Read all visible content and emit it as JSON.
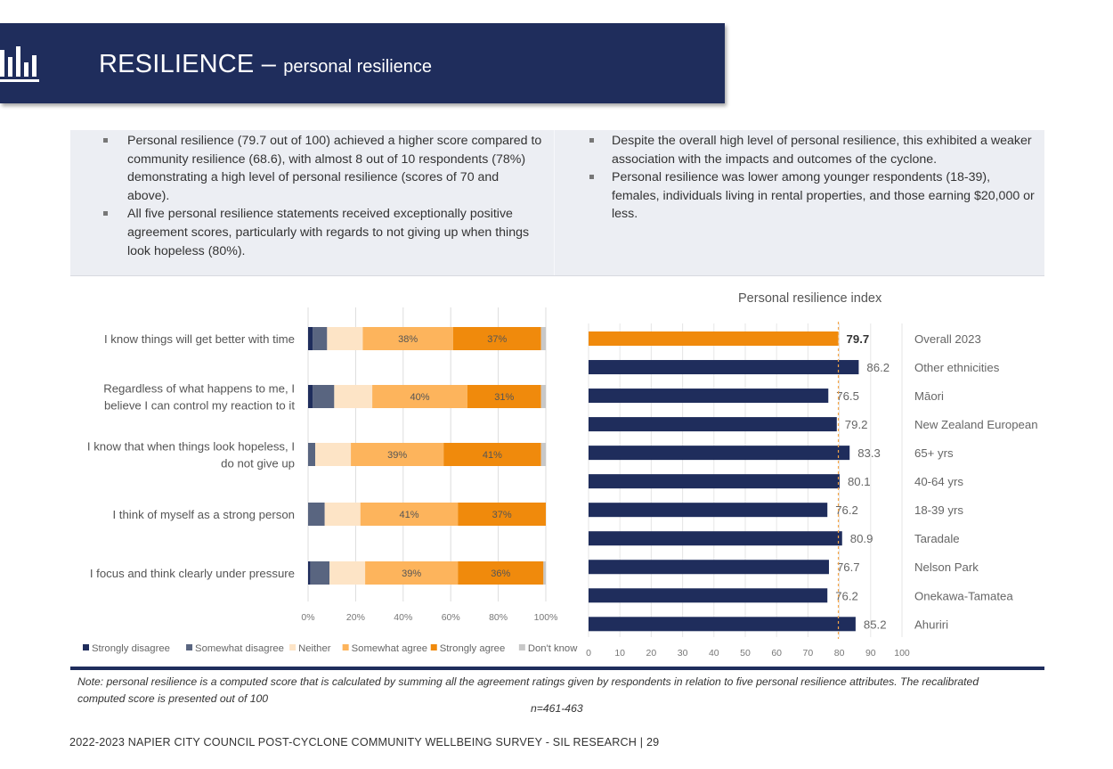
{
  "header": {
    "title": "RESILIENCE",
    "dash": " – ",
    "subtitle": "personal resilience",
    "icon": "bar-chart-icon",
    "bg_color": "#1f2d5c"
  },
  "summary": {
    "left_bullets": [
      "Personal resilience (79.7 out of 100) achieved a higher score compared to community resilience (68.6), with almost 8 out of 10 respondents (78%) demonstrating a high level of personal resilience (scores of 70 and above).",
      "All five personal resilience statements received exceptionally positive agreement scores, particularly with regards to not giving up when things look hopeless (80%)."
    ],
    "right_bullets": [
      "Despite the overall high level of personal resilience, this exhibited a weaker association with the impacts and outcomes of the cyclone.",
      "Personal resilience was lower among younger respondents (18-39), females, individuals living in rental properties, and those earning $20,000 or less."
    ]
  },
  "chart_data": [
    {
      "type": "bar",
      "orientation": "horizontal",
      "stacked": true,
      "title": "",
      "categories": [
        "I know things will get better with time",
        "Regardless of what happens to me, I believe I can control my reaction to it",
        "I know that when things look hopeless, I do not give up",
        "I think of myself as a strong person",
        "I focus and think clearly under pressure"
      ],
      "category_lines": [
        [
          "I know things will get better with time"
        ],
        [
          "Regardless of what happens to me, I",
          "believe I can control my reaction to it"
        ],
        [
          "I know that when things look hopeless, I",
          "do not give up"
        ],
        [
          "I think of myself as a strong person"
        ],
        [
          "I focus and think clearly under pressure"
        ]
      ],
      "series": [
        {
          "name": "Strongly disagree",
          "color": "#1f2d5c",
          "values": [
            2,
            2,
            0,
            0,
            1
          ]
        },
        {
          "name": "Somewhat disagree",
          "color": "#596580",
          "values": [
            6,
            9,
            3,
            7,
            8
          ]
        },
        {
          "name": "Neither",
          "color": "#fde4c6",
          "values": [
            15,
            16,
            15,
            15,
            15
          ]
        },
        {
          "name": "Somewhat agree",
          "color": "#fdb45c",
          "values": [
            38,
            40,
            39,
            41,
            39
          ]
        },
        {
          "name": "Strongly agree",
          "color": "#f08a0c",
          "values": [
            37,
            31,
            41,
            37,
            36
          ]
        },
        {
          "name": "Don't know",
          "color": "#c8c8c8",
          "values": [
            2,
            2,
            2,
            0,
            1
          ]
        }
      ],
      "data_labels": [
        [
          "38%",
          "37%"
        ],
        [
          "40%",
          "31%"
        ],
        [
          "39%",
          "41%"
        ],
        [
          "41%",
          "37%"
        ],
        [
          "39%",
          "36%"
        ]
      ],
      "labelled_series": [
        "Somewhat agree",
        "Strongly agree"
      ],
      "x_ticks": [
        "0%",
        "20%",
        "40%",
        "60%",
        "80%",
        "100%"
      ],
      "xlim": [
        0,
        100
      ],
      "grid": true,
      "legend_position": "bottom"
    },
    {
      "type": "bar",
      "orientation": "horizontal",
      "title": "Personal resilience index",
      "categories": [
        "Overall 2023",
        "Other ethnicities",
        "Māori",
        "New Zealand European",
        "65+ yrs",
        "40-64 yrs",
        "18-39 yrs",
        "Taradale",
        "Nelson Park",
        "Onekawa-Tamatea",
        "Ahuriri"
      ],
      "values": [
        79.7,
        86.2,
        76.5,
        79.2,
        83.3,
        80.1,
        76.2,
        80.9,
        76.7,
        76.2,
        85.2
      ],
      "value_labels": [
        "79.7",
        "86.2",
        "76.5",
        "79.2",
        "83.3",
        "80.1",
        "76.2",
        "80.9",
        "76.7",
        "76.2",
        "85.2"
      ],
      "highlight_color": "#f08a0c",
      "bar_color": "#1f2d5c",
      "reference_line": 79.7,
      "reference_line_color": "#f5a64a",
      "x_ticks": [
        "0",
        "10",
        "20",
        "30",
        "40",
        "50",
        "60",
        "70",
        "80",
        "90",
        "100"
      ],
      "xlim": [
        0,
        100
      ],
      "grid": true
    }
  ],
  "note": "Note: personal resilience is a computed score that is calculated by summing all the agreement ratings given by respondents in relation to five personal resilience attributes. The recalibrated computed score is presented out of 100",
  "sample_size": "n=461-463",
  "footer": "2022-2023 NAPIER CITY COUNCIL POST-CYCLONE COMMUNITY WELLBEING SURVEY - SIL RESEARCH | 29"
}
